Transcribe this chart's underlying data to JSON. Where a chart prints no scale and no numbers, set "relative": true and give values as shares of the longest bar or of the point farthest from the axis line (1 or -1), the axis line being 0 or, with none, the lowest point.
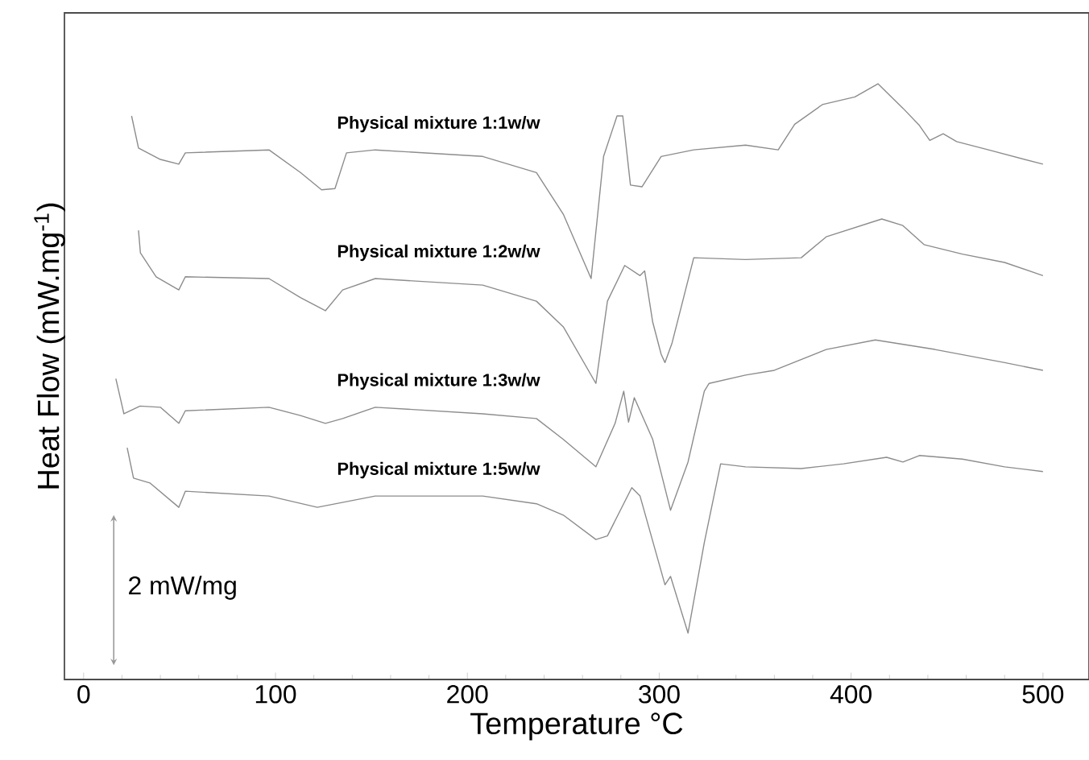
{
  "chart_data": {
    "type": "line",
    "xlabel": "Temperature  °C",
    "ylabel": "Heat Flow (mW.mg$^{-1}$)",
    "relative": true,
    "xlim": [
      -10,
      524
    ],
    "xticks": [
      0,
      100,
      200,
      300,
      400,
      500
    ],
    "grid": false,
    "legend": false,
    "marker": "none",
    "line_style": "solid",
    "annotations": [
      "2 mW/mg"
    ],
    "series": [
      {
        "name": "Physical mixture 1:1w/w",
        "color": "#8c8c8c",
        "x": [
          25,
          28.6,
          40,
          49.6,
          53,
          96.6,
          113,
          124,
          131,
          137,
          152,
          208,
          236,
          250,
          264.5,
          271,
          278,
          281,
          285,
          291,
          301,
          318,
          345,
          362,
          370.6,
          385,
          402,
          414,
          427,
          435.6,
          441,
          448,
          455,
          471.6,
          500
        ],
        "values": [
          0.946,
          0.892,
          0.873,
          0.865,
          0.884,
          0.889,
          0.851,
          0.822,
          0.824,
          0.884,
          0.889,
          0.878,
          0.851,
          0.781,
          0.673,
          0.878,
          0.946,
          0.946,
          0.83,
          0.827,
          0.878,
          0.889,
          0.897,
          0.889,
          0.932,
          0.965,
          0.978,
          1.0,
          0.959,
          0.93,
          0.905,
          0.916,
          0.903,
          0.889,
          0.865
        ]
      },
      {
        "name": "Physical mixture 1:2w/w",
        "color": "#8c8c8c",
        "x": [
          28.6,
          29.6,
          37.8,
          49.6,
          53,
          96.6,
          113,
          126,
          135,
          152,
          208,
          236,
          250,
          267,
          273,
          282,
          290,
          292.4,
          296.6,
          301,
          303,
          306.7,
          318,
          345,
          374,
          387,
          416,
          427,
          438,
          458,
          480,
          500
        ],
        "values": [
          0.754,
          0.716,
          0.676,
          0.654,
          0.676,
          0.673,
          0.641,
          0.619,
          0.654,
          0.673,
          0.662,
          0.635,
          0.592,
          0.497,
          0.635,
          0.695,
          0.678,
          0.686,
          0.6,
          0.546,
          0.532,
          0.565,
          0.708,
          0.705,
          0.708,
          0.743,
          0.773,
          0.762,
          0.73,
          0.714,
          0.7,
          0.678
        ]
      },
      {
        "name": "Physical mixture 1:3w/w",
        "color": "#8c8c8c",
        "x": [
          16.8,
          21,
          29.4,
          40,
          49.6,
          53,
          96.6,
          113,
          126,
          135,
          152,
          208,
          236,
          250,
          267,
          277,
          281.5,
          284,
          287,
          296.6,
          305.9,
          315,
          323.5,
          326,
          345,
          360,
          387,
          412.6,
          443.7,
          480,
          500
        ],
        "values": [
          0.505,
          0.446,
          0.459,
          0.457,
          0.43,
          0.451,
          0.457,
          0.443,
          0.43,
          0.438,
          0.457,
          0.446,
          0.438,
          0.403,
          0.357,
          0.43,
          0.484,
          0.432,
          0.473,
          0.403,
          0.284,
          0.365,
          0.484,
          0.497,
          0.511,
          0.519,
          0.554,
          0.57,
          0.554,
          0.532,
          0.519
        ]
      },
      {
        "name": "Physical mixture 1:5w/w",
        "color": "#8c8c8c",
        "x": [
          22.7,
          26,
          34.5,
          49.6,
          53,
          96.6,
          121.8,
          152,
          208,
          236,
          250,
          267,
          273,
          285.7,
          290,
          303,
          305.9,
          315,
          323.5,
          332,
          345,
          374,
          396,
          418.5,
          427,
          435.6,
          458,
          480,
          500
        ],
        "values": [
          0.389,
          0.338,
          0.33,
          0.289,
          0.316,
          0.308,
          0.289,
          0.308,
          0.308,
          0.295,
          0.276,
          0.235,
          0.241,
          0.322,
          0.308,
          0.159,
          0.173,
          0.078,
          0.23,
          0.362,
          0.357,
          0.354,
          0.362,
          0.373,
          0.365,
          0.376,
          0.37,
          0.357,
          0.349
        ]
      }
    ]
  }
}
